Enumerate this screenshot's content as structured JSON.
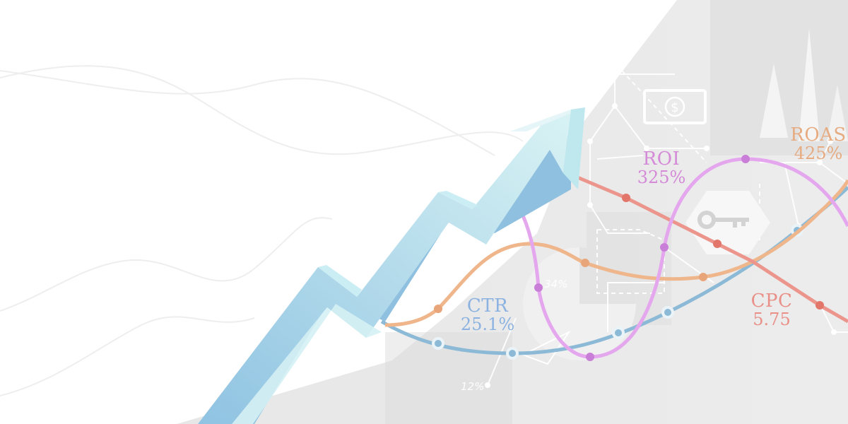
{
  "metrics": {
    "roi": {
      "name": "ROI",
      "value": "325%"
    },
    "roas": {
      "name": "ROAS",
      "value": "425%"
    },
    "ctr": {
      "name": "CTR",
      "value": "25.1%"
    },
    "cpc": {
      "name": "CPC",
      "value": "5.75"
    }
  },
  "labels": {
    "pie_percent": "34%",
    "small_percent": "12%",
    "currency_symbol": "$"
  },
  "colors": {
    "roi": "#d48ad7",
    "roas": "#e6ab80",
    "ctr": "#8bb2e0",
    "cpc": "#e99088",
    "arrow": "#a9d7ea",
    "background_panel": "#e9e9e9"
  }
}
